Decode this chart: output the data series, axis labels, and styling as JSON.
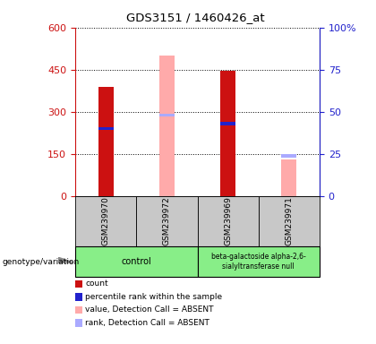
{
  "title": "GDS3151 / 1460426_at",
  "samples": [
    "GSM239970",
    "GSM239972",
    "GSM239969",
    "GSM239971"
  ],
  "count_values": [
    390,
    null,
    447,
    null
  ],
  "percentile_values": [
    240,
    null,
    258,
    null
  ],
  "absent_value_values": [
    null,
    500,
    null,
    130
  ],
  "absent_rank_values": [
    null,
    288,
    null,
    142
  ],
  "ylim_left": [
    0,
    600
  ],
  "ylim_right": [
    0,
    100
  ],
  "yticks_left": [
    0,
    150,
    300,
    450,
    600
  ],
  "yticks_right": [
    0,
    25,
    50,
    75,
    100
  ],
  "count_color": "#cc1111",
  "percentile_color": "#2222cc",
  "absent_value_color": "#ffaaaa",
  "absent_rank_color": "#aaaaff",
  "left_axis_color": "#cc1111",
  "right_axis_color": "#2222cc",
  "legend_items": [
    {
      "label": "count",
      "color": "#cc1111"
    },
    {
      "label": "percentile rank within the sample",
      "color": "#2222cc"
    },
    {
      "label": "value, Detection Call = ABSENT",
      "color": "#ffaaaa"
    },
    {
      "label": "rank, Detection Call = ABSENT",
      "color": "#aaaaff"
    }
  ],
  "bar_width": 0.25,
  "perc_bar_width": 0.25,
  "perc_bar_height": 12
}
